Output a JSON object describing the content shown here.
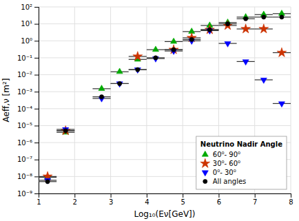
{
  "chart_data": {
    "type": "scatter",
    "x_label": "Log₁₀(Eν[GeV])",
    "y_label": "Aeff,ν [m²]",
    "legend_title": "Neutrino Nadir Angle",
    "legend": "lower right",
    "log": "y",
    "grid": true,
    "xlim": [
      1,
      8
    ],
    "ylim": [
      1e-09,
      100
    ],
    "xticks": [
      1,
      2,
      3,
      4,
      5,
      6,
      7,
      8
    ],
    "yticks": [
      {
        "value": 1e-09,
        "label": "10⁻⁹"
      },
      {
        "value": 1e-08,
        "label": "10⁻⁸"
      },
      {
        "value": 1e-07,
        "label": "10⁻⁷"
      },
      {
        "value": 1e-06,
        "label": "10⁻⁶"
      },
      {
        "value": 1e-05,
        "label": "10⁻⁵"
      },
      {
        "value": 0.0001,
        "label": "10⁻⁴"
      },
      {
        "value": 0.001,
        "label": "10⁻³"
      },
      {
        "value": 0.01,
        "label": "10⁻²"
      },
      {
        "value": 0.1,
        "label": "10⁻¹"
      },
      {
        "value": 1,
        "label": "10⁰"
      },
      {
        "value": 10,
        "label": "10¹"
      },
      {
        "value": 100,
        "label": "10²"
      }
    ],
    "series": [
      {
        "name": "60⁰- 90⁰",
        "color": "#00aa00",
        "marker": "triangle-up",
        "x": [
          1.25,
          1.75,
          2.75,
          3.25,
          3.75,
          4.25,
          4.75,
          5.25,
          5.75,
          6.25,
          6.75,
          7.25,
          7.75
        ],
        "values": [
          9e-09,
          4e-06,
          0.0015,
          0.015,
          0.08,
          0.3,
          0.9,
          3.5,
          8.0,
          12.0,
          25.0,
          35.0,
          40.0
        ],
        "xerr": [
          0.25,
          0.25,
          0.25,
          0.25,
          0.25,
          0.25,
          0.25,
          0.25,
          0.25,
          0.25,
          0.25,
          0.25,
          0.25
        ]
      },
      {
        "name": "30⁰- 60⁰",
        "color": "#cc3300",
        "marker": "star",
        "x": [
          1.25,
          1.75,
          3.75,
          4.75,
          5.25,
          5.75,
          6.25,
          6.75,
          7.25,
          7.75
        ],
        "values": [
          1e-08,
          5e-06,
          0.12,
          0.3,
          1.5,
          4.5,
          8.0,
          5.0,
          5.0,
          0.2
        ],
        "xerr": [
          0.25,
          0.25,
          0.25,
          0.25,
          0.25,
          0.25,
          0.25,
          0.25,
          0.25,
          0.25
        ]
      },
      {
        "name": "0⁰- 30⁰",
        "color": "#0000ff",
        "marker": "triangle-down",
        "x": [
          1.25,
          1.75,
          2.75,
          3.25,
          3.75,
          4.25,
          4.75,
          5.25,
          5.75,
          6.25,
          6.75,
          7.25,
          7.75
        ],
        "values": [
          6e-09,
          6e-06,
          0.0004,
          0.003,
          0.02,
          0.09,
          0.25,
          1.0,
          4.0,
          0.7,
          0.06,
          0.005,
          0.0002
        ],
        "xerr": [
          0.25,
          0.25,
          0.25,
          0.25,
          0.25,
          0.25,
          0.25,
          0.25,
          0.25,
          0.25,
          0.25,
          0.25,
          0.25
        ]
      },
      {
        "name": "All angles",
        "color": "#000000",
        "marker": "circle",
        "x": [
          1.25,
          1.75,
          2.75,
          3.25,
          3.75,
          4.25,
          4.75,
          5.25,
          5.75,
          6.25,
          6.75,
          7.25,
          7.75
        ],
        "values": [
          5e-09,
          5e-06,
          0.0005,
          0.003,
          0.02,
          0.1,
          0.3,
          1.2,
          4.5,
          10.0,
          20.0,
          25.0,
          25.0
        ],
        "xerr": [
          0.25,
          0.25,
          0.25,
          0.25,
          0.25,
          0.25,
          0.25,
          0.25,
          0.25,
          0.25,
          0.25,
          0.25,
          0.25
        ]
      }
    ]
  }
}
